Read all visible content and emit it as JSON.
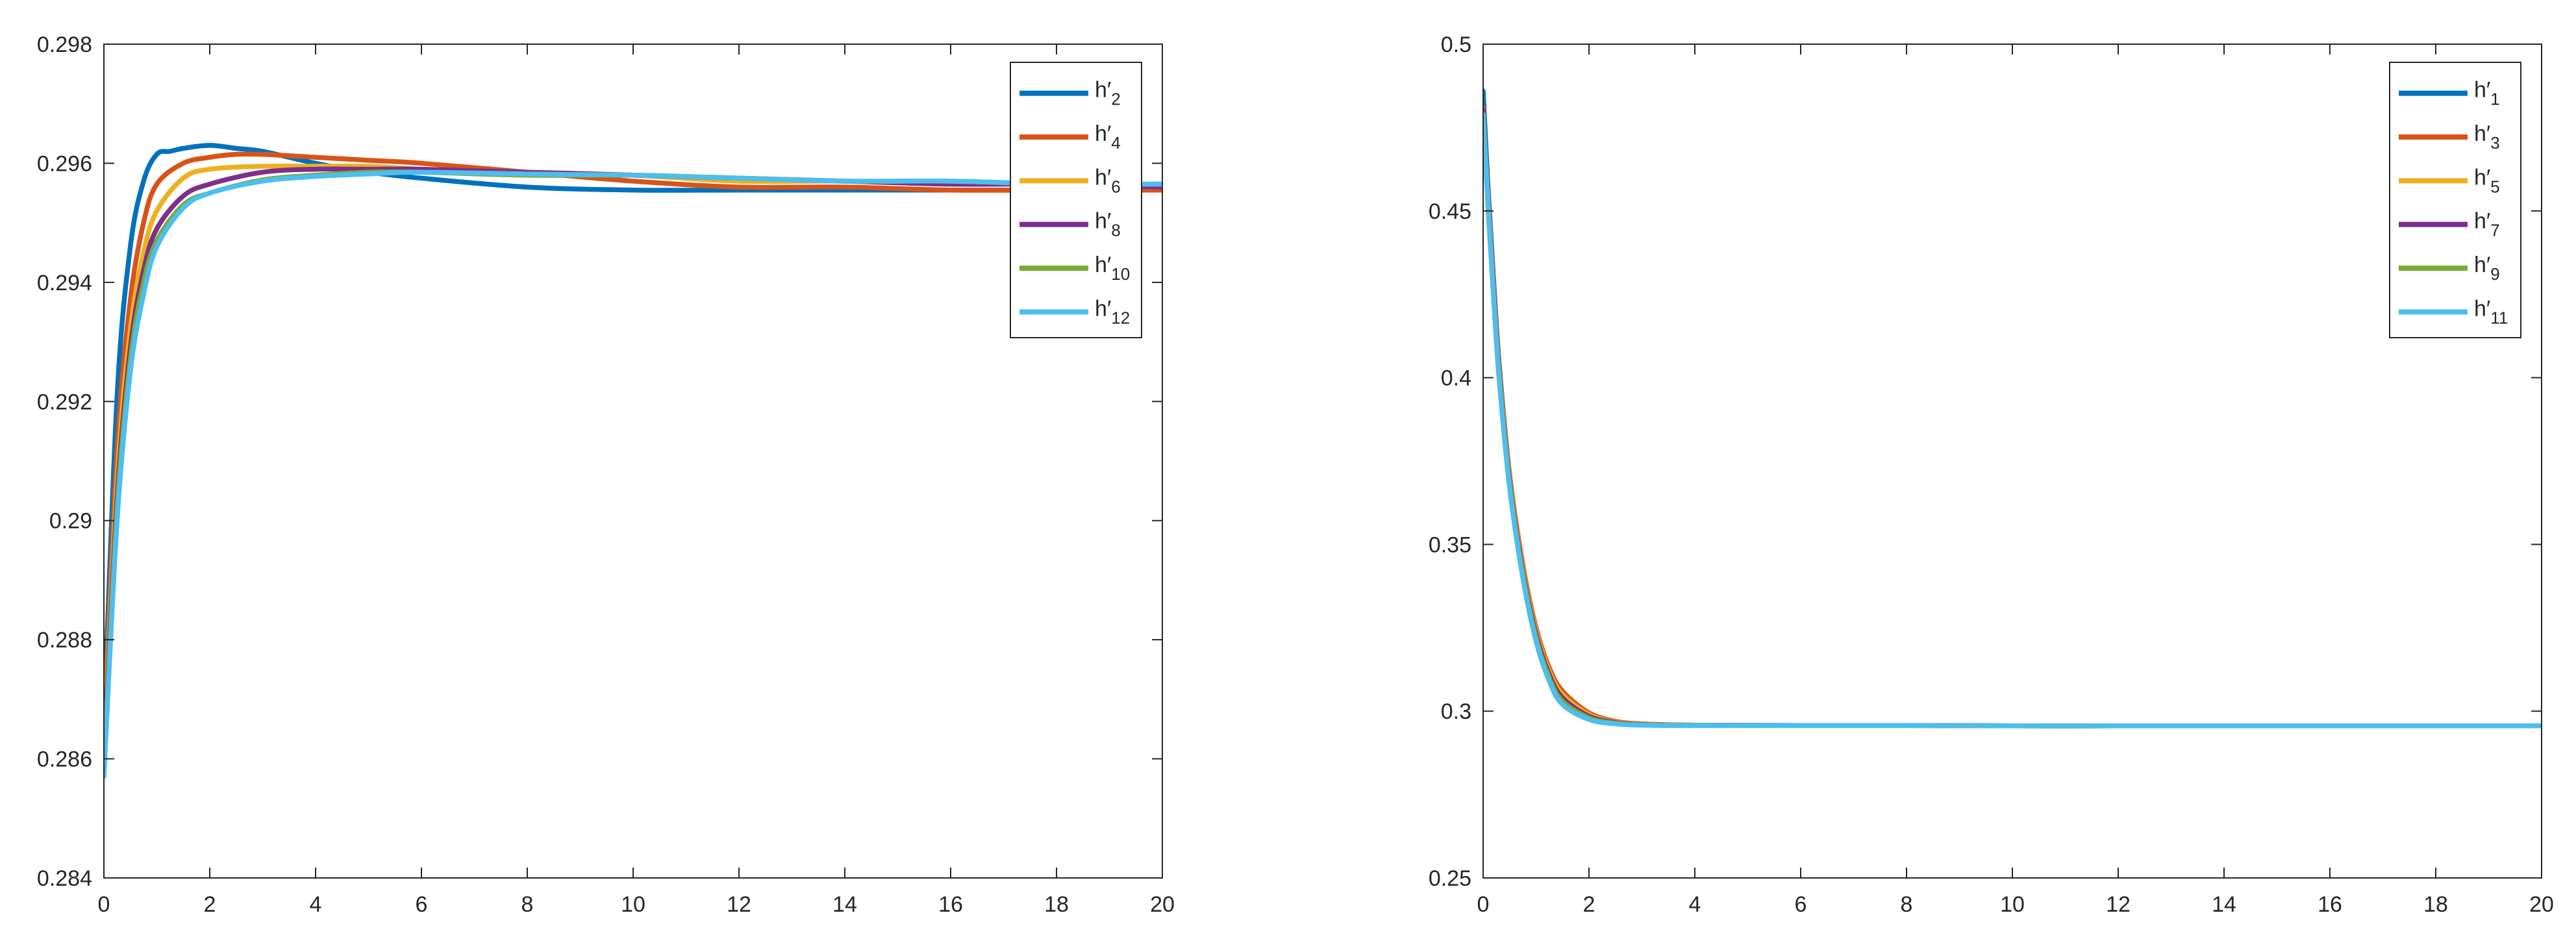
{
  "chart_data": [
    {
      "type": "line",
      "title": "",
      "xlabel": "",
      "ylabel": "",
      "xlim": [
        0,
        20
      ],
      "ylim": [
        0.284,
        0.298
      ],
      "xticks": [
        "0",
        "2",
        "4",
        "6",
        "8",
        "10",
        "12",
        "14",
        "16",
        "18",
        "20"
      ],
      "yticks": [
        "0.284",
        "0.286",
        "0.288",
        "0.29",
        "0.292",
        "0.294",
        "0.296",
        "0.298"
      ],
      "legend_position": "top-right",
      "series": [
        {
          "name": "h′2",
          "base": "h′",
          "sub": "2",
          "color": "#0072BD",
          "x": [
            0,
            0.25,
            0.5,
            0.75,
            1,
            1.25,
            1.5,
            2,
            2.5,
            3,
            4,
            5,
            6,
            8,
            10,
            12,
            14,
            16,
            18,
            20
          ],
          "y": [
            0.2866,
            0.2921,
            0.2946,
            0.2957,
            0.29615,
            0.2962,
            0.29625,
            0.2963,
            0.29625,
            0.2962,
            0.296,
            0.29585,
            0.29575,
            0.2956,
            0.29555,
            0.29555,
            0.29555,
            0.29555,
            0.29555,
            0.29555
          ]
        },
        {
          "name": "h′4",
          "base": "h′",
          "sub": "4",
          "color": "#D95319",
          "x": [
            0,
            0.25,
            0.5,
            0.75,
            1,
            1.5,
            2,
            2.5,
            3,
            4,
            5,
            6,
            8,
            10,
            12,
            14,
            16,
            18,
            20
          ],
          "y": [
            0.2864,
            0.2912,
            0.2937,
            0.295,
            0.29565,
            0.296,
            0.2961,
            0.29615,
            0.29615,
            0.2961,
            0.29605,
            0.296,
            0.29585,
            0.2957,
            0.2956,
            0.2956,
            0.29555,
            0.29555,
            0.29555
          ]
        },
        {
          "name": "h′6",
          "base": "h′",
          "sub": "6",
          "color": "#EDB120",
          "x": [
            0,
            0.25,
            0.5,
            0.75,
            1,
            1.5,
            2,
            3,
            4,
            5,
            6,
            8,
            10,
            12,
            14,
            16,
            18,
            20
          ],
          "y": [
            0.2862,
            0.2907,
            0.2932,
            0.2945,
            0.2952,
            0.29575,
            0.2959,
            0.29595,
            0.29595,
            0.29595,
            0.2959,
            0.29585,
            0.2958,
            0.2957,
            0.2957,
            0.29565,
            0.29565,
            0.2956
          ]
        },
        {
          "name": "h′8",
          "base": "h′",
          "sub": "8",
          "color": "#7E2F8E",
          "x": [
            0,
            0.25,
            0.5,
            0.75,
            1,
            1.5,
            2,
            3,
            4,
            5,
            6,
            8,
            10,
            12,
            14,
            16,
            18,
            20
          ],
          "y": [
            0.286,
            0.2904,
            0.2929,
            0.2942,
            0.2949,
            0.29545,
            0.29565,
            0.29585,
            0.2959,
            0.2959,
            0.2959,
            0.29585,
            0.2958,
            0.29575,
            0.2957,
            0.29565,
            0.29565,
            0.2956
          ]
        },
        {
          "name": "h′10",
          "base": "h′",
          "sub": "10",
          "color": "#77AC30",
          "x": [
            0,
            0.25,
            0.5,
            0.75,
            1,
            1.5,
            2,
            3,
            4,
            5,
            6,
            8,
            10,
            12,
            14,
            16,
            18,
            20
          ],
          "y": [
            0.2858,
            0.2902,
            0.2927,
            0.294,
            0.2947,
            0.2953,
            0.2955,
            0.29572,
            0.2958,
            0.29585,
            0.29585,
            0.2958,
            0.2958,
            0.29575,
            0.2957,
            0.2957,
            0.29565,
            0.29565
          ]
        },
        {
          "name": "h′12",
          "base": "h′",
          "sub": "12",
          "color": "#4DBEEE",
          "x": [
            0,
            0.25,
            0.5,
            0.75,
            1,
            1.5,
            2,
            3,
            4,
            5,
            6,
            8,
            10,
            12,
            14,
            16,
            18,
            20
          ],
          "y": [
            0.2857,
            0.29,
            0.2925,
            0.2938,
            0.2946,
            0.29525,
            0.2955,
            0.2957,
            0.29578,
            0.29582,
            0.29585,
            0.29582,
            0.2958,
            0.29575,
            0.2957,
            0.2957,
            0.29565,
            0.29565
          ]
        }
      ]
    },
    {
      "type": "line",
      "title": "",
      "xlabel": "",
      "ylabel": "",
      "xlim": [
        0,
        20
      ],
      "ylim": [
        0.25,
        0.5
      ],
      "xticks": [
        "0",
        "2",
        "4",
        "6",
        "8",
        "10",
        "12",
        "14",
        "16",
        "18",
        "20"
      ],
      "yticks": [
        "0.25",
        "0.3",
        "0.35",
        "0.4",
        "0.45",
        "0.5"
      ],
      "legend_position": "top-right",
      "series": [
        {
          "name": "h′1",
          "base": "h′",
          "sub": "1",
          "color": "#0072BD",
          "x": [
            0,
            0.1,
            0.2,
            0.3,
            0.5,
            0.75,
            1,
            1.25,
            1.5,
            2,
            2.5,
            3,
            4,
            6,
            8,
            10,
            12,
            14,
            16,
            18,
            20
          ],
          "y": [
            0.486,
            0.455,
            0.429,
            0.405,
            0.371,
            0.343,
            0.324,
            0.312,
            0.305,
            0.2985,
            0.2965,
            0.296,
            0.2958,
            0.2957,
            0.2957,
            0.2956,
            0.2956,
            0.2956,
            0.2956,
            0.2956,
            0.2956
          ]
        },
        {
          "name": "h′3",
          "base": "h′",
          "sub": "3",
          "color": "#D95319",
          "x": [
            0,
            0.1,
            0.2,
            0.3,
            0.5,
            0.75,
            1,
            1.25,
            1.5,
            2,
            2.5,
            3,
            4,
            6,
            8,
            10,
            12,
            14,
            16,
            18,
            20
          ],
          "y": [
            0.481,
            0.452,
            0.427,
            0.404,
            0.371,
            0.344,
            0.325,
            0.313,
            0.306,
            0.2995,
            0.297,
            0.2962,
            0.2958,
            0.2957,
            0.2957,
            0.2956,
            0.2956,
            0.2956,
            0.2956,
            0.2956,
            0.2956
          ]
        },
        {
          "name": "h′5",
          "base": "h′",
          "sub": "5",
          "color": "#EDB120",
          "x": [
            0,
            0.1,
            0.2,
            0.3,
            0.5,
            0.75,
            1,
            1.25,
            1.5,
            2,
            2.5,
            3,
            4,
            6,
            8,
            10,
            12,
            14,
            16,
            18,
            20
          ],
          "y": [
            0.48,
            0.451,
            0.426,
            0.403,
            0.37,
            0.343,
            0.324,
            0.312,
            0.305,
            0.299,
            0.2968,
            0.2961,
            0.2958,
            0.2957,
            0.2957,
            0.2956,
            0.2956,
            0.2956,
            0.2956,
            0.2956,
            0.2956
          ]
        },
        {
          "name": "h′7",
          "base": "h′",
          "sub": "7",
          "color": "#7E2F8E",
          "x": [
            0,
            0.1,
            0.2,
            0.3,
            0.5,
            0.75,
            1,
            1.25,
            1.5,
            2,
            2.5,
            3,
            4,
            6,
            8,
            10,
            12,
            14,
            16,
            18,
            20
          ],
          "y": [
            0.48,
            0.45,
            0.425,
            0.402,
            0.369,
            0.342,
            0.323,
            0.311,
            0.304,
            0.2985,
            0.2966,
            0.296,
            0.2958,
            0.2957,
            0.2957,
            0.2956,
            0.2956,
            0.2956,
            0.2956,
            0.2956,
            0.2956
          ]
        },
        {
          "name": "h′9",
          "base": "h′",
          "sub": "9",
          "color": "#77AC30",
          "x": [
            0,
            0.1,
            0.2,
            0.3,
            0.5,
            0.75,
            1,
            1.25,
            1.5,
            2,
            2.5,
            3,
            4,
            6,
            8,
            10,
            12,
            14,
            16,
            18,
            20
          ],
          "y": [
            0.479,
            0.449,
            0.424,
            0.401,
            0.368,
            0.341,
            0.322,
            0.31,
            0.303,
            0.298,
            0.2964,
            0.2959,
            0.2958,
            0.2957,
            0.2957,
            0.2956,
            0.2956,
            0.2956,
            0.2956,
            0.2956,
            0.2956
          ]
        },
        {
          "name": "h′11",
          "base": "h′",
          "sub": "11",
          "color": "#4DBEEE",
          "x": [
            0,
            0.1,
            0.2,
            0.3,
            0.5,
            0.75,
            1,
            1.25,
            1.5,
            2,
            2.5,
            3,
            4,
            6,
            8,
            10,
            12,
            14,
            16,
            18,
            20
          ],
          "y": [
            0.479,
            0.449,
            0.423,
            0.4,
            0.367,
            0.34,
            0.321,
            0.309,
            0.302,
            0.2975,
            0.2962,
            0.2958,
            0.2957,
            0.2957,
            0.2957,
            0.2956,
            0.2956,
            0.2956,
            0.2956,
            0.2956,
            0.2956
          ]
        }
      ]
    }
  ]
}
